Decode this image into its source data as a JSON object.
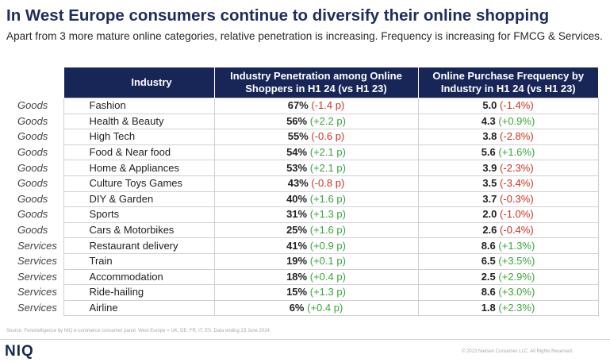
{
  "title": "In West Europe consumers continue to diversify their online shopping",
  "subtitle": "Apart from 3 more mature online categories, relative penetration is increasing. Frequency is increasing for FMCG & Services.",
  "table": {
    "headers": {
      "industry": "Industry",
      "penetration": "Industry Penetration among Online Shoppers in H1 24 (vs H1 23)",
      "frequency": "Online Purchase Frequency by Industry in H1 24 (vs H1 23)"
    },
    "rows": [
      {
        "category": "Goods",
        "industry": "Fashion",
        "pen": "67%",
        "pen_chg": "(-1.4 p)",
        "pen_dir": "neg",
        "freq": "5.0",
        "freq_chg": "(-1.4%)",
        "freq_dir": "neg"
      },
      {
        "category": "Goods",
        "industry": "Health & Beauty",
        "pen": "56%",
        "pen_chg": "(+2.2 p)",
        "pen_dir": "pos",
        "freq": "4.3",
        "freq_chg": "(+0.9%)",
        "freq_dir": "pos"
      },
      {
        "category": "Goods",
        "industry": "High Tech",
        "pen": "55%",
        "pen_chg": "(-0.6 p)",
        "pen_dir": "neg",
        "freq": "3.8",
        "freq_chg": "(-2.8%)",
        "freq_dir": "neg"
      },
      {
        "category": "Goods",
        "industry": "Food & Near food",
        "pen": "54%",
        "pen_chg": "(+2.1 p)",
        "pen_dir": "pos",
        "freq": "5.6",
        "freq_chg": "(+1.6%)",
        "freq_dir": "pos"
      },
      {
        "category": "Goods",
        "industry": "Home & Appliances",
        "pen": "53%",
        "pen_chg": "(+2.1 p)",
        "pen_dir": "pos",
        "freq": "3.9",
        "freq_chg": "(-2.3%)",
        "freq_dir": "neg"
      },
      {
        "category": "Goods",
        "industry": "Culture Toys Games",
        "pen": "43%",
        "pen_chg": "(-0.8 p)",
        "pen_dir": "neg",
        "freq": "3.5",
        "freq_chg": "(-3.4%)",
        "freq_dir": "neg"
      },
      {
        "category": "Goods",
        "industry": "DIY & Garden",
        "pen": "40%",
        "pen_chg": "(+1.6 p)",
        "pen_dir": "pos",
        "freq": "3.7",
        "freq_chg": "(-0.3%)",
        "freq_dir": "neg"
      },
      {
        "category": "Goods",
        "industry": "Sports",
        "pen": "31%",
        "pen_chg": "(+1.3 p)",
        "pen_dir": "pos",
        "freq": "2.0",
        "freq_chg": "(-1.0%)",
        "freq_dir": "neg"
      },
      {
        "category": "Goods",
        "industry": "Cars & Motorbikes",
        "pen": "25%",
        "pen_chg": "(+1.6 p)",
        "pen_dir": "pos",
        "freq": "2.6",
        "freq_chg": "(-0.4%)",
        "freq_dir": "neg"
      },
      {
        "category": "Services",
        "industry": "Restaurant delivery",
        "pen": "41%",
        "pen_chg": "(+0.9 p)",
        "pen_dir": "pos",
        "freq": "8.6",
        "freq_chg": "(+1.3%)",
        "freq_dir": "pos"
      },
      {
        "category": "Services",
        "industry": "Train",
        "pen": "19%",
        "pen_chg": "(+0.1 p)",
        "pen_dir": "pos",
        "freq": "6.5",
        "freq_chg": "(+3.5%)",
        "freq_dir": "pos"
      },
      {
        "category": "Services",
        "industry": "Accommodation",
        "pen": "18%",
        "pen_chg": "(+0.4 p)",
        "pen_dir": "pos",
        "freq": "2.5",
        "freq_chg": "(+2.9%)",
        "freq_dir": "pos"
      },
      {
        "category": "Services",
        "industry": "Ride-hailing",
        "pen": "15%",
        "pen_chg": "(+1.3 p)",
        "pen_dir": "pos",
        "freq": "8.6",
        "freq_chg": "(+3.0%)",
        "freq_dir": "pos"
      },
      {
        "category": "Services",
        "industry": "Airline",
        "pen": "6%",
        "pen_chg": "(+0.4 p)",
        "pen_dir": "pos",
        "freq": "1.8",
        "freq_chg": "(+2.3%)",
        "freq_dir": "pos"
      }
    ]
  },
  "colors": {
    "header_bg": "#182657",
    "negative": "#d0311e",
    "positive": "#3ba53a",
    "title": "#1e2d5c"
  },
  "source": "Source: Forestelligence by NIQ e-commerce consumer panel. West Europe = UK, DE, FR, IT, ES. Data ending 23 June 2024.",
  "logo": "NIQ",
  "copyright": "© 2023 Nielsen Consumer LLC. All Rights Reserved."
}
